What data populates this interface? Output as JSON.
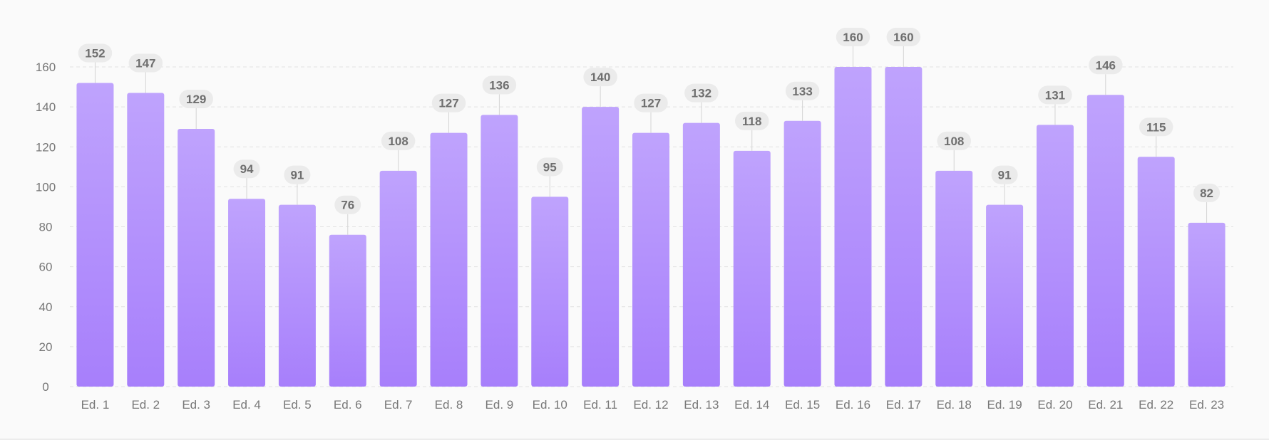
{
  "chart_data": {
    "type": "bar",
    "title": "",
    "xlabel": "",
    "ylabel": "",
    "categories": [
      "Ed. 1",
      "Ed. 2",
      "Ed. 3",
      "Ed. 4",
      "Ed. 5",
      "Ed. 6",
      "Ed. 7",
      "Ed. 8",
      "Ed. 9",
      "Ed. 10",
      "Ed. 11",
      "Ed. 12",
      "Ed. 13",
      "Ed. 14",
      "Ed. 15",
      "Ed. 16",
      "Ed. 17",
      "Ed. 18",
      "Ed. 19",
      "Ed. 20",
      "Ed. 21",
      "Ed. 22",
      "Ed. 23"
    ],
    "values": [
      152,
      147,
      129,
      94,
      91,
      76,
      108,
      127,
      136,
      95,
      140,
      127,
      132,
      118,
      133,
      160,
      160,
      108,
      91,
      131,
      146,
      115,
      82
    ],
    "ylim": [
      0,
      160
    ],
    "yticks": [
      0,
      20,
      40,
      60,
      80,
      100,
      120,
      140,
      160
    ],
    "grid": true,
    "data_labels": true,
    "colors": {
      "bar_top": "#bfa3fd",
      "bar_bottom": "#a77ffb",
      "grid": "#e2e2e2",
      "label_bg": "#ebebeb",
      "label_text": "#6f6f6f",
      "axis_text": "#777777",
      "background": "#fafafa"
    }
  }
}
